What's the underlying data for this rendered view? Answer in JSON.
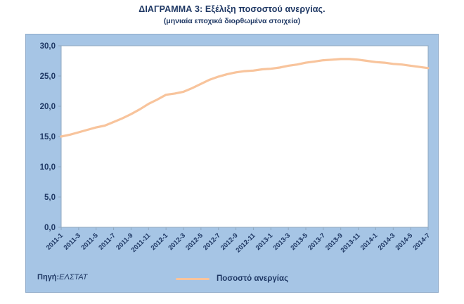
{
  "header": {
    "title": "ΔΙΑΓΡΑΜΜΑ 3: Εξέλιξη ποσοστού ανεργίας.",
    "subtitle": "(μηνιαία εποχικά διορθωμένα στοιχεία)"
  },
  "footer": {
    "source_label": "Πηγή:",
    "source_value": "ΕΛΣΤΑΤ"
  },
  "legend": {
    "label": "Ποσοστό ανεργίας"
  },
  "colors": {
    "chart_bg": "#A6C5E5",
    "plot_bg": "#FFFFFF",
    "plot_border": "#8FA8C0",
    "line": "#F8C49C",
    "text": "#1F3864"
  },
  "chart_data": {
    "type": "line",
    "title": "ΔΙΑΓΡΑΜΜΑ 3: Εξέλιξη ποσοστού ανεργίας.",
    "subtitle": "(μηνιαία εποχικά διορθωμένα στοιχεία)",
    "xlabel": "",
    "ylabel": "",
    "ylim": [
      0,
      30
    ],
    "yticks": [
      0,
      5,
      10,
      15,
      20,
      25,
      30
    ],
    "ytick_labels": [
      "0,0",
      "5,0",
      "10,0",
      "15,0",
      "20,0",
      "25,0",
      "30,0"
    ],
    "x": [
      "2011-1",
      "2011-2",
      "2011-3",
      "2011-4",
      "2011-5",
      "2011-6",
      "2011-7",
      "2011-8",
      "2011-9",
      "2011-10",
      "2011-11",
      "2011-12",
      "2012-1",
      "2012-2",
      "2012-3",
      "2012-4",
      "2012-5",
      "2012-6",
      "2012-7",
      "2012-8",
      "2012-9",
      "2012-10",
      "2012-11",
      "2012-12",
      "2013-1",
      "2013-2",
      "2013-3",
      "2013-4",
      "2013-5",
      "2013-6",
      "2013-7",
      "2013-8",
      "2013-9",
      "2013-10",
      "2013-11",
      "2013-12",
      "2014-1",
      "2014-2",
      "2014-3",
      "2014-4",
      "2014-5",
      "2014-6",
      "2014-7"
    ],
    "xtick_every": 2,
    "xtick_labels": [
      "2011-1",
      "2011-3",
      "2011-5",
      "2011-7",
      "2011-9",
      "2011-11",
      "2012-1",
      "2012-3",
      "2012-5",
      "2012-7",
      "2012-9",
      "2012-11",
      "2013-1",
      "2013-3",
      "2013-5",
      "2013-7",
      "2013-9",
      "2013-11",
      "2014-1",
      "2014-3",
      "2014-5",
      "2014-7"
    ],
    "series": [
      {
        "name": "Ποσοστό ανεργίας",
        "values": [
          15.0,
          15.3,
          15.7,
          16.1,
          16.5,
          16.8,
          17.4,
          18.0,
          18.7,
          19.5,
          20.4,
          21.1,
          21.9,
          22.1,
          22.4,
          23.0,
          23.7,
          24.4,
          24.9,
          25.3,
          25.6,
          25.8,
          25.9,
          26.1,
          26.2,
          26.4,
          26.7,
          26.9,
          27.2,
          27.4,
          27.6,
          27.7,
          27.8,
          27.8,
          27.7,
          27.5,
          27.3,
          27.2,
          27.0,
          26.9,
          26.7,
          26.5,
          26.3
        ]
      }
    ],
    "legend_position": "bottom",
    "grid": false
  }
}
